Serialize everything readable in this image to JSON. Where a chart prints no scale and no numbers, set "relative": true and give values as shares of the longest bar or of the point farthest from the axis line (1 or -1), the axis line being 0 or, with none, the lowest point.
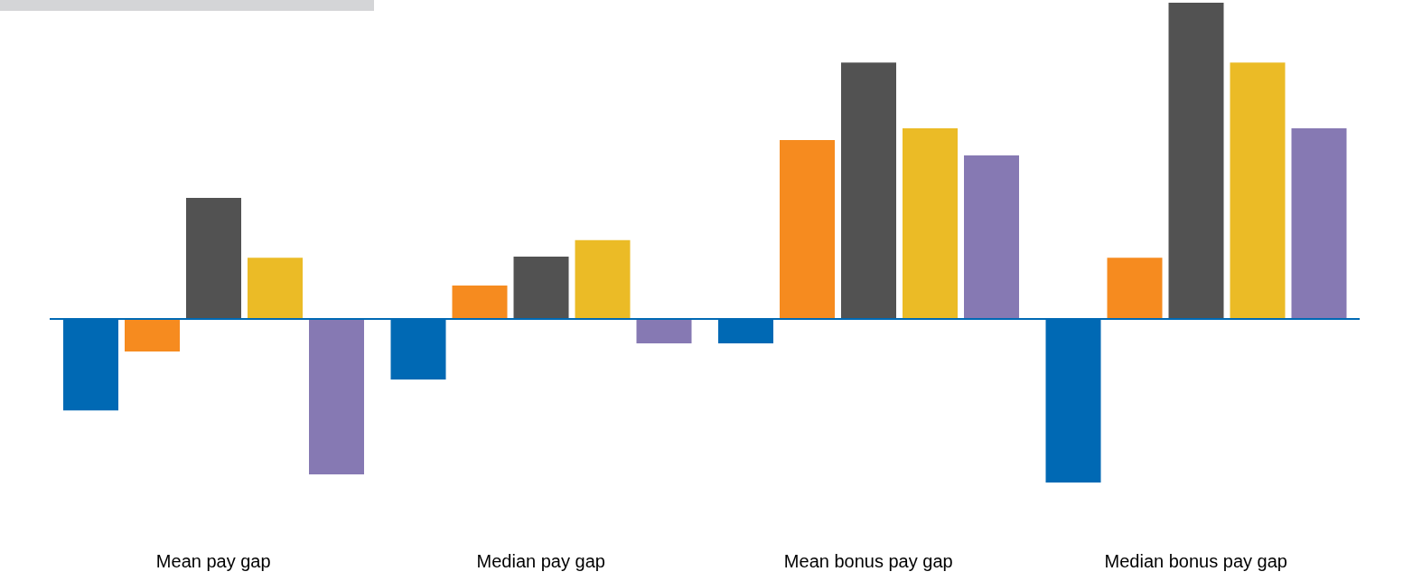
{
  "chart_data": {
    "type": "bar",
    "relative": true,
    "categories": [
      "Mean pay gap",
      "Median pay gap",
      "Mean bonus pay gap",
      "Median bonus pay gap"
    ],
    "series": [
      {
        "color": "#0069b4",
        "values": [
          -0.289,
          -0.191,
          -0.077,
          -0.517
        ]
      },
      {
        "color": "#f68b1f",
        "values": [
          -0.103,
          0.106,
          0.566,
          0.194
        ]
      },
      {
        "color": "#525252",
        "values": [
          0.383,
          0.197,
          0.811,
          1
        ]
      },
      {
        "color": "#ebbb26",
        "values": [
          0.194,
          0.249,
          0.603,
          0.811
        ]
      },
      {
        "color": "#8679b3",
        "values": [
          -0.491,
          -0.077,
          0.517,
          0.603
        ]
      }
    ],
    "ref_lines": [
      {
        "axis": "y",
        "value": 0,
        "color": "#0069b4"
      }
    ],
    "grid": false,
    "legend": false
  }
}
